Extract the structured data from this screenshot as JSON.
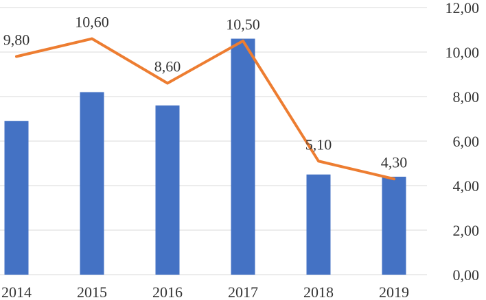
{
  "chart_data": {
    "type": "bar",
    "categories": [
      "2014",
      "2015",
      "2016",
      "2017",
      "2018",
      "2019"
    ],
    "series": [
      {
        "type": "bar",
        "values": [
          6.9,
          8.2,
          7.6,
          10.6,
          4.5,
          4.4
        ],
        "color": "#4472C4",
        "axis": "right"
      },
      {
        "type": "line",
        "values": [
          9.8,
          10.6,
          8.6,
          10.5,
          5.1,
          4.3
        ],
        "labels": [
          "9,80",
          "10,60",
          "8,60",
          "10,50",
          "5,10",
          "4,30"
        ],
        "color": "#ED7D31",
        "axis": "right"
      }
    ],
    "y_axis": {
      "position": "right",
      "range": [
        0,
        12
      ],
      "ticks": [
        "0,00",
        "2,00",
        "4,00",
        "6,00",
        "8,00",
        "10,00",
        "12,00"
      ]
    },
    "grid": true,
    "legend": "none"
  }
}
